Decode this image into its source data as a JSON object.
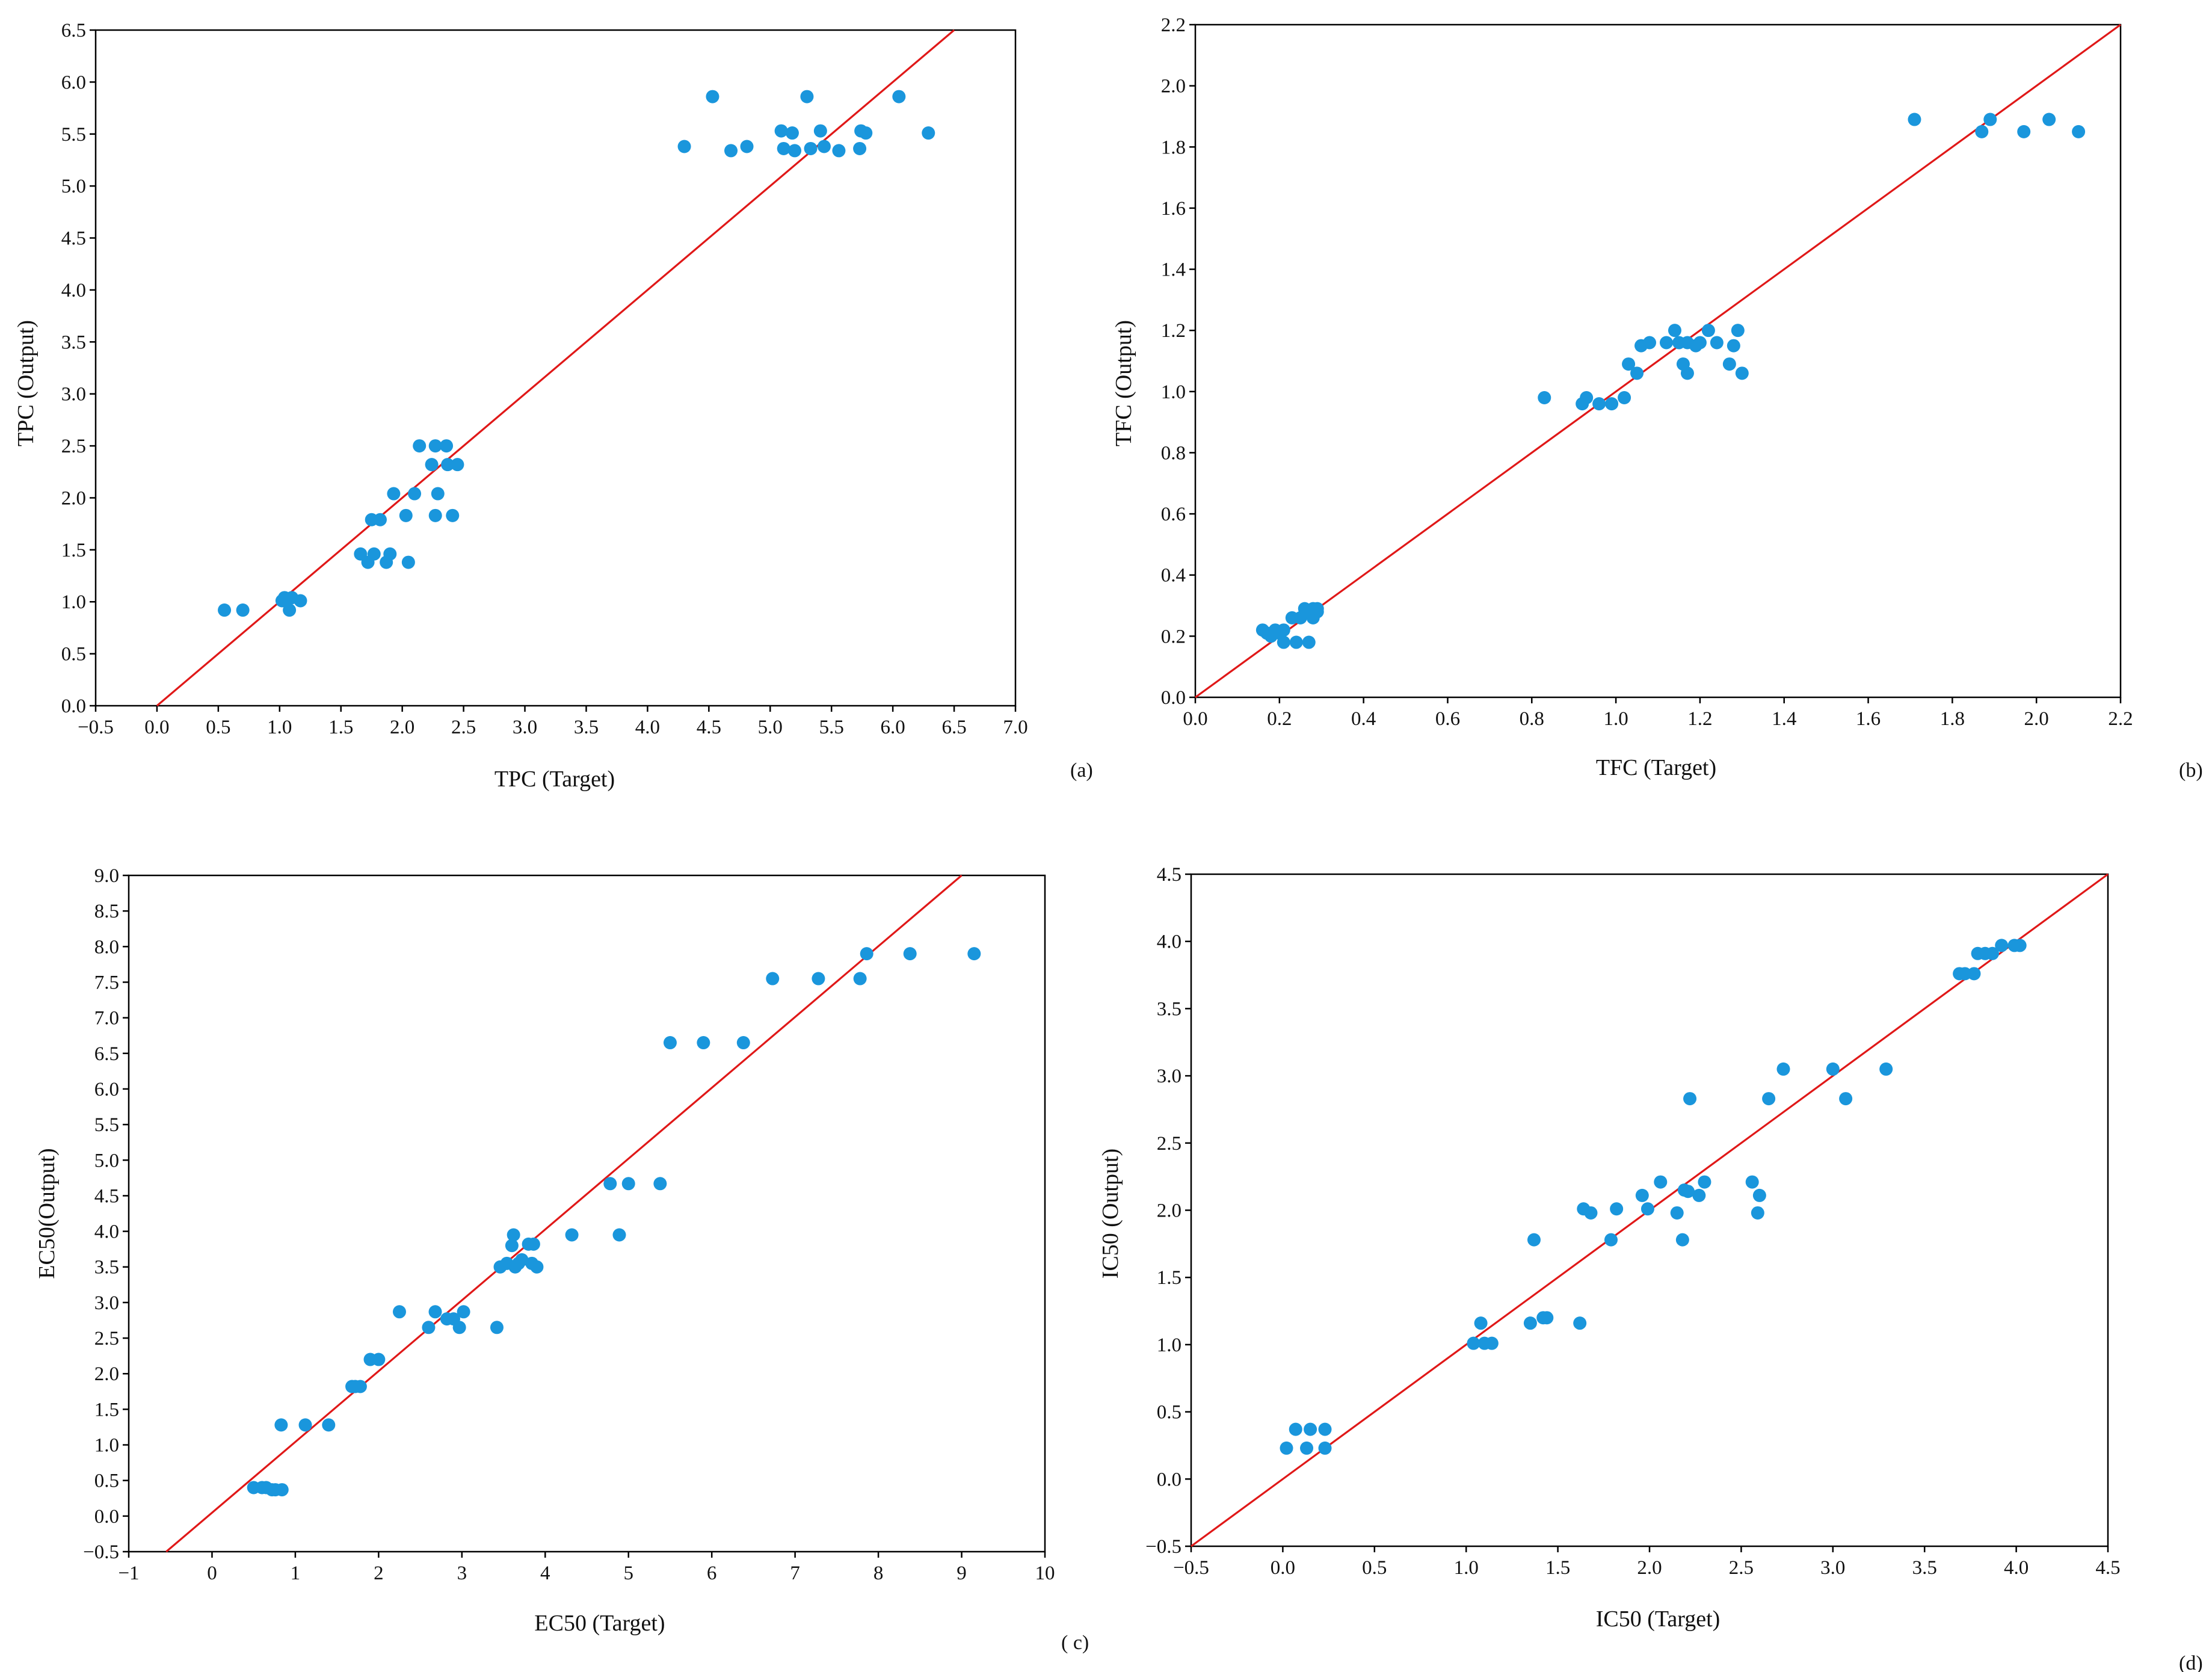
{
  "colors": {
    "points": "#1a96dc",
    "fit_line": "#e01818",
    "axes": "#000000"
  },
  "chart_data": [
    {
      "type": "scatter",
      "panel_label": "(a)",
      "xlabel": "TPC (Target)",
      "ylabel": "TPC (Output)",
      "xlim": [
        -0.5,
        7.0
      ],
      "ylim": [
        0.0,
        6.5
      ],
      "xticks": [
        -0.5,
        0.0,
        0.5,
        1.0,
        1.5,
        2.0,
        2.5,
        3.0,
        3.5,
        4.0,
        4.5,
        5.0,
        5.5,
        6.0,
        6.5,
        7.0
      ],
      "yticks": [
        0.0,
        0.5,
        1.0,
        1.5,
        2.0,
        2.5,
        3.0,
        3.5,
        4.0,
        4.5,
        5.0,
        5.5,
        6.0,
        6.5
      ],
      "xtick_labels": [
        "−0.5",
        "0.0",
        "0.5",
        "1.0",
        "1.5",
        "2.0",
        "2.5",
        "3.0",
        "3.5",
        "4.0",
        "4.5",
        "5.0",
        "5.5",
        "6.0",
        "6.5",
        "7.0"
      ],
      "ytick_labels": [
        "0.0",
        "0.5",
        "1.0",
        "1.5",
        "2.0",
        "2.5",
        "3.0",
        "3.5",
        "4.0",
        "4.5",
        "5.0",
        "5.5",
        "6.0",
        "6.5"
      ],
      "fit_line": [
        [
          0.0,
          0.0
        ],
        [
          6.5,
          6.5
        ]
      ],
      "points": [
        [
          0.55,
          0.92
        ],
        [
          0.7,
          0.92
        ],
        [
          1.02,
          1.01
        ],
        [
          1.04,
          1.04
        ],
        [
          1.06,
          1.01
        ],
        [
          1.08,
          0.92
        ],
        [
          1.1,
          1.04
        ],
        [
          1.17,
          1.01
        ],
        [
          1.66,
          1.46
        ],
        [
          1.72,
          1.38
        ],
        [
          1.75,
          1.79
        ],
        [
          1.77,
          1.46
        ],
        [
          1.82,
          1.79
        ],
        [
          1.87,
          1.38
        ],
        [
          1.9,
          1.46
        ],
        [
          1.93,
          2.04
        ],
        [
          2.03,
          1.83
        ],
        [
          2.05,
          1.38
        ],
        [
          2.1,
          2.04
        ],
        [
          2.14,
          2.5
        ],
        [
          2.24,
          2.32
        ],
        [
          2.27,
          1.83
        ],
        [
          2.27,
          2.5
        ],
        [
          2.29,
          2.04
        ],
        [
          2.36,
          2.5
        ],
        [
          2.37,
          2.32
        ],
        [
          2.41,
          1.83
        ],
        [
          2.45,
          2.32
        ],
        [
          4.3,
          5.38
        ],
        [
          4.53,
          5.86
        ],
        [
          4.68,
          5.34
        ],
        [
          4.81,
          5.38
        ],
        [
          5.09,
          5.53
        ],
        [
          5.11,
          5.36
        ],
        [
          5.18,
          5.51
        ],
        [
          5.2,
          5.34
        ],
        [
          5.3,
          5.86
        ],
        [
          5.33,
          5.36
        ],
        [
          5.41,
          5.53
        ],
        [
          5.44,
          5.38
        ],
        [
          5.56,
          5.34
        ],
        [
          5.73,
          5.36
        ],
        [
          5.74,
          5.53
        ],
        [
          5.78,
          5.51
        ],
        [
          6.05,
          5.86
        ],
        [
          6.29,
          5.51
        ]
      ]
    },
    {
      "type": "scatter",
      "panel_label": "(b)",
      "xlabel": "TFC (Target)",
      "ylabel": "TFC (Output)",
      "xlim": [
        0.0,
        2.2
      ],
      "ylim": [
        0.0,
        2.2
      ],
      "xticks": [
        0.0,
        0.2,
        0.4,
        0.6,
        0.8,
        1.0,
        1.2,
        1.4,
        1.6,
        1.8,
        2.0,
        2.2
      ],
      "yticks": [
        0.0,
        0.2,
        0.4,
        0.6,
        0.8,
        1.0,
        1.2,
        1.4,
        1.6,
        1.8,
        2.0,
        2.2
      ],
      "xtick_labels": [
        "0.0",
        "0.2",
        "0.4",
        "0.6",
        "0.8",
        "1.0",
        "1.2",
        "1.4",
        "1.6",
        "1.8",
        "2.0",
        "2.2"
      ],
      "ytick_labels": [
        "0.0",
        "0.2",
        "0.4",
        "0.6",
        "0.8",
        "1.0",
        "1.2",
        "1.4",
        "1.6",
        "1.8",
        "2.0",
        "2.2"
      ],
      "fit_line": [
        [
          0.0,
          0.0
        ],
        [
          2.2,
          2.2
        ]
      ],
      "points": [
        [
          0.16,
          0.22
        ],
        [
          0.17,
          0.21
        ],
        [
          0.18,
          0.2
        ],
        [
          0.19,
          0.22
        ],
        [
          0.2,
          0.21
        ],
        [
          0.21,
          0.18
        ],
        [
          0.21,
          0.22
        ],
        [
          0.23,
          0.26
        ],
        [
          0.24,
          0.18
        ],
        [
          0.25,
          0.26
        ],
        [
          0.26,
          0.29
        ],
        [
          0.27,
          0.18
        ],
        [
          0.27,
          0.28
        ],
        [
          0.28,
          0.26
        ],
        [
          0.28,
          0.29
        ],
        [
          0.29,
          0.28
        ],
        [
          0.29,
          0.29
        ],
        [
          0.83,
          0.98
        ],
        [
          0.92,
          0.96
        ],
        [
          0.93,
          0.98
        ],
        [
          0.96,
          0.96
        ],
        [
          0.99,
          0.96
        ],
        [
          1.02,
          0.98
        ],
        [
          1.03,
          1.09
        ],
        [
          1.05,
          1.06
        ],
        [
          1.06,
          1.15
        ],
        [
          1.08,
          1.16
        ],
        [
          1.12,
          1.16
        ],
        [
          1.14,
          1.2
        ],
        [
          1.15,
          1.16
        ],
        [
          1.16,
          1.09
        ],
        [
          1.17,
          1.06
        ],
        [
          1.17,
          1.16
        ],
        [
          1.19,
          1.15
        ],
        [
          1.2,
          1.16
        ],
        [
          1.22,
          1.2
        ],
        [
          1.24,
          1.16
        ],
        [
          1.27,
          1.09
        ],
        [
          1.28,
          1.15
        ],
        [
          1.29,
          1.2
        ],
        [
          1.3,
          1.06
        ],
        [
          1.71,
          1.89
        ],
        [
          1.87,
          1.85
        ],
        [
          1.89,
          1.89
        ],
        [
          1.97,
          1.85
        ],
        [
          2.03,
          1.89
        ],
        [
          2.1,
          1.85
        ]
      ]
    },
    {
      "type": "scatter",
      "panel_label": "( c)",
      "xlabel": "EC50 (Target)",
      "ylabel": "EC50(Output)",
      "xlim": [
        -1,
        10
      ],
      "ylim": [
        -0.5,
        9.0
      ],
      "xticks": [
        -1,
        0,
        1,
        2,
        3,
        4,
        5,
        6,
        7,
        8,
        9,
        10
      ],
      "yticks": [
        -0.5,
        0.0,
        0.5,
        1.0,
        1.5,
        2.0,
        2.5,
        3.0,
        3.5,
        4.0,
        4.5,
        5.0,
        5.5,
        6.0,
        6.5,
        7.0,
        7.5,
        8.0,
        8.5,
        9.0
      ],
      "xtick_labels": [
        "−1",
        "0",
        "1",
        "2",
        "3",
        "4",
        "5",
        "6",
        "7",
        "8",
        "9",
        "10"
      ],
      "ytick_labels": [
        "−0.5",
        "0.0",
        "0.5",
        "1.0",
        "1.5",
        "2.0",
        "2.5",
        "3.0",
        "3.5",
        "4.0",
        "4.5",
        "5.0",
        "5.5",
        "6.0",
        "6.5",
        "7.0",
        "7.5",
        "8.0",
        "8.5",
        "9.0"
      ],
      "fit_line": [
        [
          -0.55,
          -0.5
        ],
        [
          9.0,
          9.0
        ]
      ],
      "points": [
        [
          0.5,
          0.4
        ],
        [
          0.6,
          0.4
        ],
        [
          0.65,
          0.4
        ],
        [
          0.72,
          0.37
        ],
        [
          0.76,
          0.37
        ],
        [
          0.84,
          0.37
        ],
        [
          0.83,
          1.28
        ],
        [
          1.12,
          1.28
        ],
        [
          1.4,
          1.28
        ],
        [
          1.68,
          1.82
        ],
        [
          1.72,
          1.82
        ],
        [
          1.78,
          1.82
        ],
        [
          1.9,
          2.2
        ],
        [
          2.0,
          2.2
        ],
        [
          2.25,
          2.87
        ],
        [
          2.6,
          2.65
        ],
        [
          2.68,
          2.87
        ],
        [
          2.82,
          2.77
        ],
        [
          2.9,
          2.77
        ],
        [
          2.97,
          2.65
        ],
        [
          3.02,
          2.87
        ],
        [
          3.42,
          2.65
        ],
        [
          3.46,
          3.5
        ],
        [
          3.54,
          3.55
        ],
        [
          3.6,
          3.8
        ],
        [
          3.62,
          3.95
        ],
        [
          3.64,
          3.5
        ],
        [
          3.68,
          3.55
        ],
        [
          3.72,
          3.6
        ],
        [
          3.8,
          3.82
        ],
        [
          3.84,
          3.55
        ],
        [
          3.86,
          3.82
        ],
        [
          3.9,
          3.5
        ],
        [
          4.32,
          3.95
        ],
        [
          4.78,
          4.67
        ],
        [
          4.89,
          3.95
        ],
        [
          5.0,
          4.67
        ],
        [
          5.38,
          4.67
        ],
        [
          5.5,
          6.65
        ],
        [
          5.9,
          6.65
        ],
        [
          6.38,
          6.65
        ],
        [
          6.73,
          7.55
        ],
        [
          7.28,
          7.55
        ],
        [
          7.78,
          7.55
        ],
        [
          7.86,
          7.9
        ],
        [
          8.38,
          7.9
        ],
        [
          9.15,
          7.9
        ]
      ]
    },
    {
      "type": "scatter",
      "panel_label": "(d)",
      "xlabel": "IC50 (Target)",
      "ylabel": "IC50 (Output)",
      "xlim": [
        -0.5,
        4.5
      ],
      "ylim": [
        -0.5,
        4.5
      ],
      "xticks": [
        -0.5,
        0.0,
        0.5,
        1.0,
        1.5,
        2.0,
        2.5,
        3.0,
        3.5,
        4.0,
        4.5
      ],
      "yticks": [
        -0.5,
        0.0,
        0.5,
        1.0,
        1.5,
        2.0,
        2.5,
        3.0,
        3.5,
        4.0,
        4.5
      ],
      "xtick_labels": [
        "−0.5",
        "0.0",
        "0.5",
        "1.0",
        "1.5",
        "2.0",
        "2.5",
        "3.0",
        "3.5",
        "4.0",
        "4.5"
      ],
      "ytick_labels": [
        "−0.5",
        "0.0",
        "0.5",
        "1.0",
        "1.5",
        "2.0",
        "2.5",
        "3.0",
        "3.5",
        "4.0",
        "4.5"
      ],
      "fit_line": [
        [
          -0.5,
          -0.5
        ],
        [
          4.5,
          4.5
        ]
      ],
      "points": [
        [
          0.02,
          0.23
        ],
        [
          0.07,
          0.37
        ],
        [
          0.13,
          0.23
        ],
        [
          0.15,
          0.37
        ],
        [
          0.23,
          0.37
        ],
        [
          0.23,
          0.23
        ],
        [
          1.04,
          1.01
        ],
        [
          1.08,
          1.16
        ],
        [
          1.1,
          1.01
        ],
        [
          1.14,
          1.01
        ],
        [
          1.35,
          1.16
        ],
        [
          1.37,
          1.78
        ],
        [
          1.42,
          1.2
        ],
        [
          1.44,
          1.2
        ],
        [
          1.62,
          1.16
        ],
        [
          1.64,
          2.01
        ],
        [
          1.68,
          1.98
        ],
        [
          1.79,
          1.78
        ],
        [
          1.82,
          2.01
        ],
        [
          1.96,
          2.11
        ],
        [
          1.99,
          2.01
        ],
        [
          2.06,
          2.21
        ],
        [
          2.15,
          1.98
        ],
        [
          2.18,
          1.78
        ],
        [
          2.19,
          2.15
        ],
        [
          2.21,
          2.14
        ],
        [
          2.22,
          2.83
        ],
        [
          2.27,
          2.11
        ],
        [
          2.3,
          2.21
        ],
        [
          2.56,
          2.21
        ],
        [
          2.59,
          1.98
        ],
        [
          2.6,
          2.11
        ],
        [
          2.65,
          2.83
        ],
        [
          2.73,
          3.05
        ],
        [
          3.0,
          3.05
        ],
        [
          3.07,
          2.83
        ],
        [
          3.29,
          3.05
        ],
        [
          3.69,
          3.76
        ],
        [
          3.72,
          3.76
        ],
        [
          3.77,
          3.76
        ],
        [
          3.79,
          3.91
        ],
        [
          3.83,
          3.91
        ],
        [
          3.87,
          3.91
        ],
        [
          3.92,
          3.97
        ],
        [
          3.99,
          3.97
        ],
        [
          4.02,
          3.97
        ]
      ]
    }
  ]
}
